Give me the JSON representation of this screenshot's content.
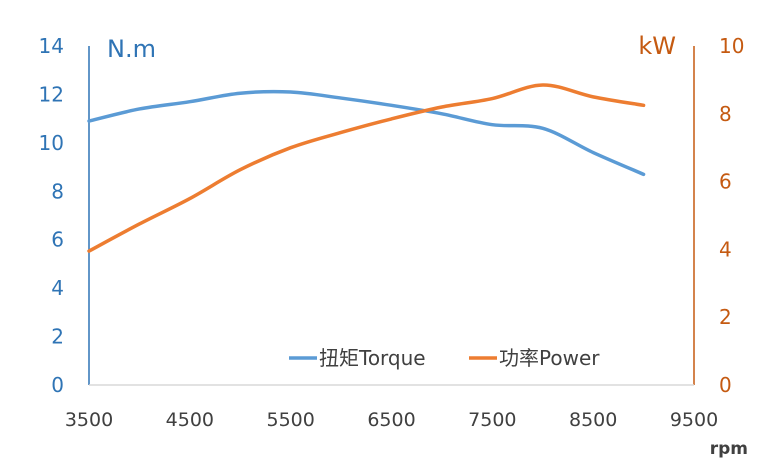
{
  "chart_data": {
    "type": "line",
    "x_unit": "rpm",
    "y_left_unit": "N.m",
    "y_right_unit": "kW",
    "x_ticks": [
      3500,
      4500,
      5500,
      6500,
      7500,
      8500,
      9500
    ],
    "y_left_ticks": [
      0,
      2,
      4,
      6,
      8,
      10,
      12,
      14
    ],
    "y_right_ticks": [
      0,
      2,
      4,
      6,
      8,
      10
    ],
    "xlim": [
      3500,
      9500
    ],
    "ylim_left": [
      0,
      14
    ],
    "ylim_right": [
      0,
      10
    ],
    "grid": false,
    "legend_position": "bottom-right",
    "series": [
      {
        "name": "扭矩Torque",
        "axis": "left",
        "color": "#5b9bd5",
        "x": [
          3500,
          4000,
          4500,
          5000,
          5500,
          6000,
          6500,
          7000,
          7500,
          8000,
          8500,
          9000
        ],
        "values": [
          10.9,
          11.4,
          11.7,
          12.05,
          12.1,
          11.85,
          11.55,
          11.2,
          10.75,
          10.6,
          9.6,
          8.7
        ]
      },
      {
        "name": "功率Power",
        "axis": "right",
        "color": "#ed7d31",
        "x": [
          3500,
          4000,
          4500,
          5000,
          5500,
          6000,
          6500,
          7000,
          7500,
          8000,
          8500,
          9000
        ],
        "values": [
          3.95,
          4.75,
          5.5,
          6.35,
          7.0,
          7.45,
          7.85,
          8.2,
          8.45,
          8.85,
          8.5,
          8.25
        ]
      }
    ]
  }
}
